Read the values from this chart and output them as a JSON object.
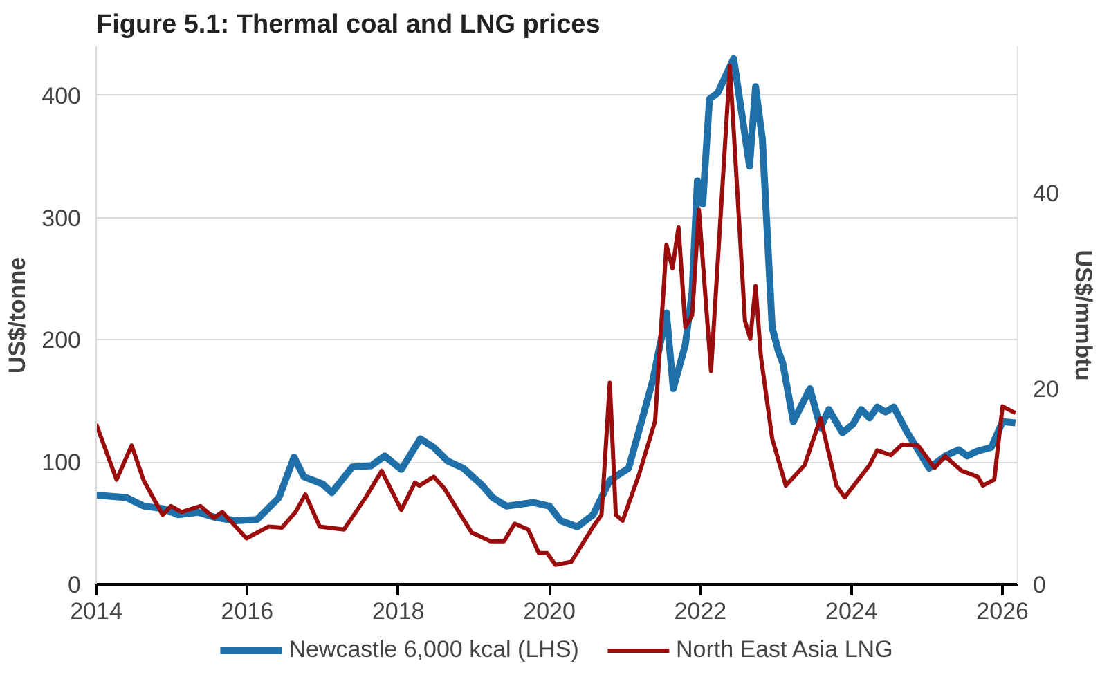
{
  "chart_data": {
    "type": "line",
    "title": "Figure 5.1: Thermal coal and LNG prices",
    "ylabel": "US$/tonne",
    "y2label": "US$/mmbtu",
    "xlim": [
      2014,
      2026.2
    ],
    "xticks": [
      2014,
      2016,
      2018,
      2020,
      2022,
      2024,
      2026
    ],
    "ylim": [
      0,
      440
    ],
    "yticks": [
      0,
      100,
      200,
      300,
      400
    ],
    "y2lim": [
      0,
      55
    ],
    "y2ticks": [
      0,
      20,
      40
    ],
    "grid": "y",
    "legend": "bottom",
    "marker": "none",
    "line_style": "solid",
    "series": [
      {
        "name": "Newcastle 6,000 kcal (LHS)",
        "color": "#1f6fa8",
        "x": [
          2014.0,
          2014.4,
          2014.63,
          2014.88,
          2015.08,
          2015.35,
          2015.56,
          2015.85,
          2016.13,
          2016.42,
          2016.62,
          2016.75,
          2017.0,
          2017.12,
          2017.39,
          2017.64,
          2017.82,
          2018.04,
          2018.29,
          2018.47,
          2018.65,
          2018.86,
          2019.11,
          2019.25,
          2019.43,
          2019.79,
          2020.0,
          2020.15,
          2020.37,
          2020.58,
          2020.8,
          2021.05,
          2021.37,
          2021.55,
          2021.64,
          2021.8,
          2021.89,
          2021.96,
          2022.03,
          2022.12,
          2022.23,
          2022.44,
          2022.65,
          2022.73,
          2022.82,
          2022.95,
          2023.03,
          2023.09,
          2023.23,
          2023.45,
          2023.59,
          2023.7,
          2023.88,
          2024.02,
          2024.13,
          2024.24,
          2024.34,
          2024.45,
          2024.56,
          2024.74,
          2025.03,
          2025.24,
          2025.42,
          2025.53,
          2025.67,
          2025.85,
          2026.0,
          2026.17
        ],
        "values": [
          73,
          71,
          64,
          62,
          57,
          59,
          55,
          52,
          53,
          71,
          104,
          88,
          82,
          75,
          96,
          97,
          105,
          94,
          119,
          112,
          101,
          95,
          81,
          71,
          64,
          67,
          64,
          52,
          47,
          57,
          85,
          95,
          167,
          222,
          160,
          196,
          239,
          330,
          311,
          397,
          402,
          430,
          342,
          407,
          364,
          210,
          191,
          181,
          133,
          160,
          128,
          143,
          124,
          131,
          143,
          136,
          145,
          141,
          145,
          124,
          95,
          105,
          110,
          105,
          109,
          112,
          133,
          132
        ]
      },
      {
        "name": "North East Asia LNG",
        "color": "#9b0d0d",
        "axis": "y2",
        "x": [
          2014.0,
          2014.27,
          2014.47,
          2014.63,
          2014.88,
          2014.99,
          2015.13,
          2015.38,
          2015.56,
          2015.67,
          2015.99,
          2016.28,
          2016.46,
          2016.64,
          2016.77,
          2016.96,
          2017.28,
          2017.57,
          2017.78,
          2018.04,
          2018.22,
          2018.28,
          2018.47,
          2018.61,
          2018.97,
          2019.22,
          2019.4,
          2019.54,
          2019.72,
          2019.86,
          2019.97,
          2020.08,
          2020.29,
          2020.58,
          2020.69,
          2020.8,
          2020.88,
          2020.97,
          2021.19,
          2021.4,
          2021.55,
          2021.63,
          2021.71,
          2021.8,
          2021.89,
          2021.98,
          2022.14,
          2022.39,
          2022.59,
          2022.66,
          2022.73,
          2022.8,
          2022.95,
          2023.13,
          2023.38,
          2023.59,
          2023.8,
          2023.91,
          2024.24,
          2024.34,
          2024.52,
          2024.67,
          2024.88,
          2025.1,
          2025.24,
          2025.46,
          2025.67,
          2025.74,
          2025.89,
          2026.0,
          2026.17
        ],
        "values": [
          16.4,
          10.7,
          14.2,
          10.6,
          7.1,
          8.0,
          7.4,
          8.0,
          6.8,
          7.4,
          4.7,
          5.9,
          5.8,
          7.4,
          9.2,
          5.9,
          5.6,
          8.9,
          11.6,
          7.6,
          10.4,
          10.1,
          11.0,
          9.8,
          5.3,
          4.4,
          4.4,
          6.2,
          5.6,
          3.2,
          3.2,
          2.0,
          2.3,
          5.9,
          7.1,
          20.6,
          7.1,
          6.5,
          11.3,
          16.7,
          34.7,
          32.3,
          36.5,
          26.3,
          27.5,
          38.3,
          21.8,
          53,
          26.9,
          25.1,
          30.5,
          23.3,
          14.9,
          10.1,
          12.2,
          17.0,
          10.1,
          8.9,
          12.2,
          13.7,
          13.2,
          14.3,
          14.2,
          11.9,
          13.1,
          11.6,
          11.0,
          10.1,
          10.7,
          18.2,
          17.5
        ]
      }
    ]
  }
}
